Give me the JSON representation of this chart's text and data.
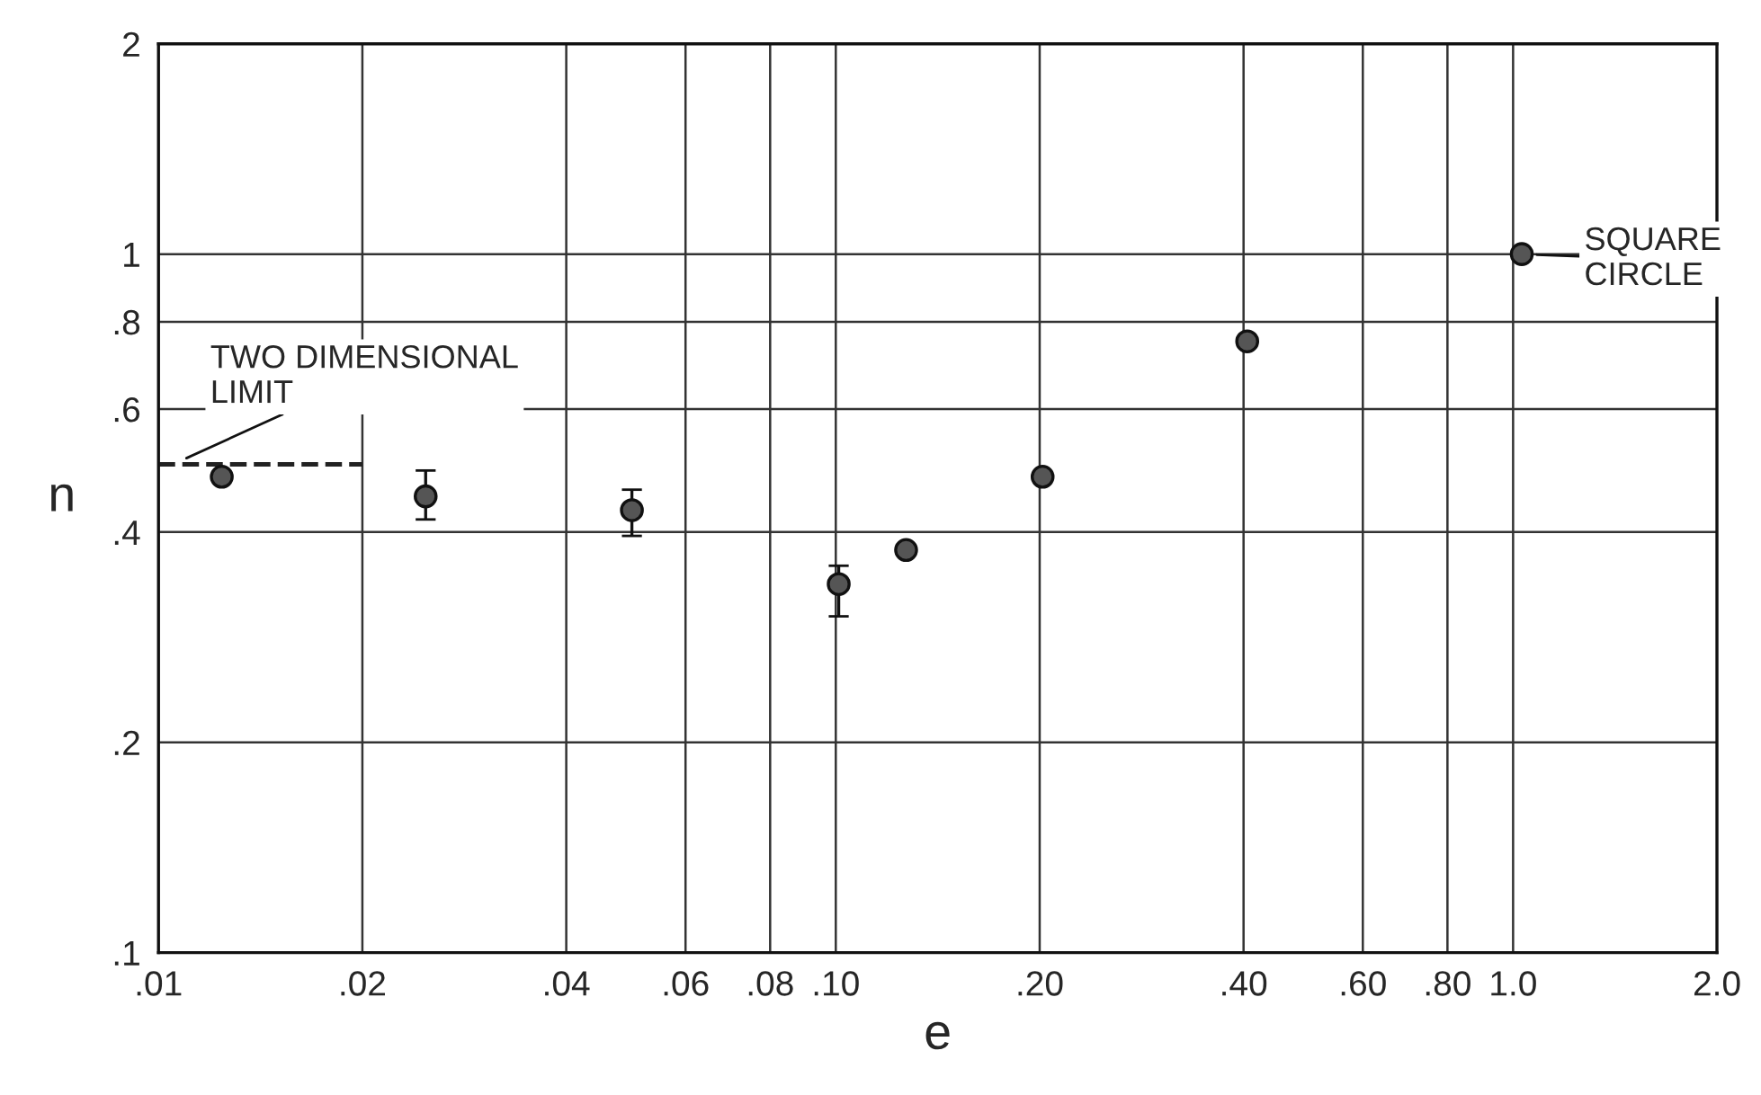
{
  "chart_data": {
    "type": "scatter",
    "xlabel": "e",
    "ylabel": "n",
    "log": "xy",
    "grid": true,
    "marker": "circle",
    "xlim": [
      0.01,
      2.0
    ],
    "ylim": [
      0.1,
      2
    ],
    "xticks": [
      {
        "value": 0.01,
        "label": ".01"
      },
      {
        "value": 0.02,
        "label": ".02"
      },
      {
        "value": 0.04,
        "label": ".04"
      },
      {
        "value": 0.06,
        "label": ".06"
      },
      {
        "value": 0.08,
        "label": ".08"
      },
      {
        "value": 0.1,
        "label": ".10"
      },
      {
        "value": 0.2,
        "label": ".20"
      },
      {
        "value": 0.4,
        "label": ".40"
      },
      {
        "value": 0.6,
        "label": ".60"
      },
      {
        "value": 0.8,
        "label": ".80"
      },
      {
        "value": 1.0,
        "label": "1.0"
      },
      {
        "value": 2.0,
        "label": "2.0"
      }
    ],
    "yticks": [
      {
        "value": 0.1,
        "label": ".1"
      },
      {
        "value": 0.2,
        "label": ".2"
      },
      {
        "value": 0.4,
        "label": ".4"
      },
      {
        "value": 0.6,
        "label": ".6"
      },
      {
        "value": 0.8,
        "label": ".8"
      },
      1,
      2
    ],
    "series": [
      {
        "color": "#555555",
        "x": [
          0.0124,
          0.0248,
          0.05,
          0.101,
          0.127,
          0.202,
          0.405,
          1.03
        ],
        "values": [
          0.48,
          0.45,
          0.43,
          0.337,
          0.377,
          0.48,
          0.75,
          1.0
        ],
        "errors": [
          null,
          [
            0.417,
            0.49
          ],
          [
            0.395,
            0.46
          ],
          [
            0.303,
            0.358
          ],
          null,
          null,
          null,
          null
        ]
      },
      {
        "type": "line",
        "color": "#222222",
        "line_style": "dashed",
        "marker": "none",
        "x": [
          0.01,
          0.02
        ],
        "values": [
          0.5,
          0.5
        ]
      }
    ],
    "annotations": [
      {
        "text": "TWO DIMENSIONAL\nLIMIT",
        "x": 0.0105,
        "y": 0.5
      },
      {
        "text": "SQUARE\nCIRCLE",
        "x": 1.03,
        "y": 1.0
      }
    ]
  }
}
